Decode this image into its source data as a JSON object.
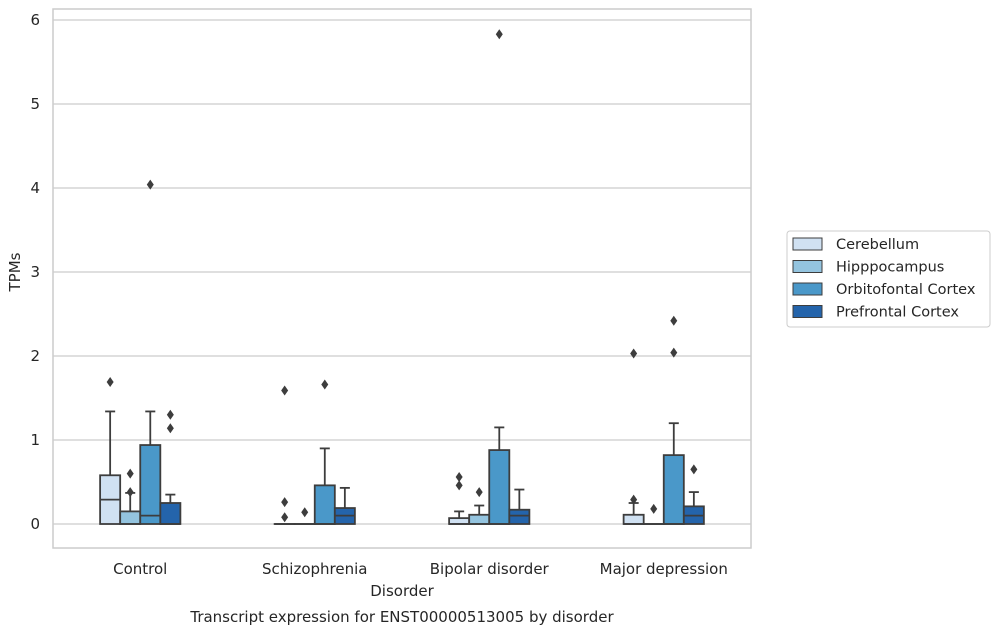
{
  "chart_data": {
    "type": "boxplot",
    "title": "Transcript expression for ENST00000513005 by disorder",
    "xlabel": "Disorder",
    "ylabel": "TPMs",
    "ylim": [
      -0.28,
      6.15
    ],
    "yticks": [
      0,
      1,
      2,
      3,
      4,
      5,
      6
    ],
    "grid": "horizontal",
    "legend_position": "right, outside plot",
    "categories": [
      "Control",
      "Schizophrenia",
      "Bipolar disorder",
      "Major depression"
    ],
    "series": [
      {
        "name": "Cerebellum",
        "color": "#d0e1f2",
        "boxes": [
          {
            "min": 0,
            "q1": 0,
            "median": 0.29,
            "q3": 0.58,
            "max": 1.34,
            "outliers": [
              1.69
            ]
          },
          {
            "min": 0,
            "q1": 0,
            "median": 0,
            "q3": 0,
            "max": 0,
            "outliers": [
              1.59,
              0.26,
              0.08
            ]
          },
          {
            "min": 0,
            "q1": 0,
            "median": 0,
            "q3": 0.07,
            "max": 0.15,
            "outliers": [
              0.56,
              0.46
            ]
          },
          {
            "min": 0,
            "q1": 0,
            "median": 0,
            "q3": 0.11,
            "max": 0.25,
            "outliers": [
              2.03,
              0.29
            ]
          }
        ]
      },
      {
        "name": "Hipppocampus",
        "color": "#94c4df",
        "boxes": [
          {
            "min": 0,
            "q1": 0,
            "median": 0,
            "q3": 0.15,
            "max": 0.37,
            "outliers": [
              0.6,
              0.38
            ]
          },
          {
            "min": 0,
            "q1": 0,
            "median": 0,
            "q3": 0,
            "max": 0,
            "outliers": [
              0.14
            ]
          },
          {
            "min": 0,
            "q1": 0,
            "median": 0,
            "q3": 0.11,
            "max": 0.22,
            "outliers": [
              0.38
            ]
          },
          {
            "min": 0,
            "q1": 0,
            "median": 0,
            "q3": 0,
            "max": 0,
            "outliers": [
              0.18
            ]
          }
        ]
      },
      {
        "name": "Orbitofontal Cortex",
        "color": "#4a98c9",
        "boxes": [
          {
            "min": 0,
            "q1": 0,
            "median": 0.1,
            "q3": 0.94,
            "max": 1.34,
            "outliers": [
              4.04
            ]
          },
          {
            "min": 0,
            "q1": 0,
            "median": 0,
            "q3": 0.46,
            "max": 0.9,
            "outliers": [
              1.66
            ]
          },
          {
            "min": 0,
            "q1": 0,
            "median": 0,
            "q3": 0.88,
            "max": 1.15,
            "outliers": [
              5.83
            ]
          },
          {
            "min": 0,
            "q1": 0,
            "median": 0,
            "q3": 0.82,
            "max": 1.2,
            "outliers": [
              2.42,
              2.04
            ]
          }
        ]
      },
      {
        "name": "Prefrontal Cortex",
        "color": "#2464ab",
        "boxes": [
          {
            "min": 0,
            "q1": 0,
            "median": 0,
            "q3": 0.25,
            "max": 0.35,
            "outliers": [
              1.3,
              1.14
            ]
          },
          {
            "min": 0,
            "q1": 0,
            "median": 0.1,
            "q3": 0.19,
            "max": 0.43,
            "outliers": []
          },
          {
            "min": 0,
            "q1": 0,
            "median": 0.1,
            "q3": 0.17,
            "max": 0.41,
            "outliers": []
          },
          {
            "min": 0,
            "q1": 0,
            "median": 0.1,
            "q3": 0.21,
            "max": 0.38,
            "outliers": [
              0.65
            ]
          }
        ]
      }
    ]
  }
}
